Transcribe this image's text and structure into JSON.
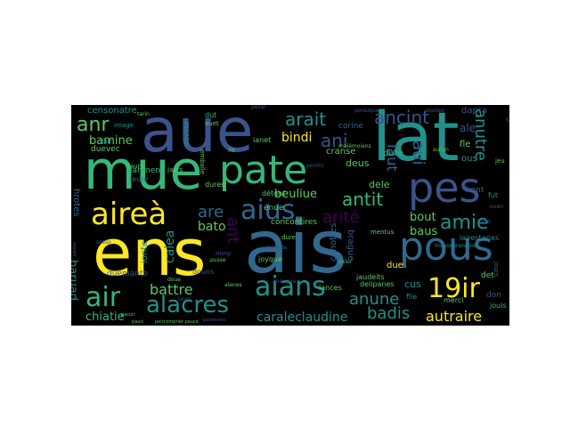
{
  "wordcloud": {
    "background": "#000000",
    "palette": [
      "#fde725",
      "#21918c",
      "#3b528b",
      "#440154",
      "#5ec962",
      "#31688e",
      "#35b779"
    ],
    "words": [
      {
        "text": "ais",
        "color": "#31688e"
      },
      {
        "text": "ens",
        "color": "#fde725"
      },
      {
        "text": "aue",
        "color": "#3b528b"
      },
      {
        "text": "lat",
        "color": "#21918c"
      },
      {
        "text": "mue",
        "color": "#35b779"
      },
      {
        "text": "pate",
        "color": "#35b779"
      },
      {
        "text": "pes",
        "color": "#3b528b"
      },
      {
        "text": "pous",
        "color": "#31688e"
      },
      {
        "text": "aireà",
        "color": "#fde725"
      },
      {
        "text": "aius",
        "color": "#31688e"
      },
      {
        "text": "aians",
        "color": "#21918c"
      },
      {
        "text": "air",
        "color": "#35b779"
      },
      {
        "text": "alacres",
        "color": "#21918c"
      },
      {
        "text": "19ir",
        "color": "#fde725"
      },
      {
        "text": "arait",
        "color": "#21918c"
      },
      {
        "text": "ancint",
        "color": "#3b528b"
      },
      {
        "text": "anr",
        "color": "#5ec962"
      },
      {
        "text": "ani",
        "color": "#3b528b"
      },
      {
        "text": "amie",
        "color": "#21918c"
      },
      {
        "text": "anutre",
        "color": "#21918c"
      },
      {
        "text": "antit",
        "color": "#35b779"
      },
      {
        "text": "arité",
        "color": "#440154"
      },
      {
        "text": "are",
        "color": "#31688e"
      },
      {
        "text": "ant",
        "color": "#440154"
      },
      {
        "text": "laut",
        "color": "#31688e"
      },
      {
        "text": "aui",
        "color": "#31688e"
      },
      {
        "text": "bamine",
        "color": "#5ec962"
      },
      {
        "text": "anune",
        "color": "#21918c"
      },
      {
        "text": "badis",
        "color": "#21918c"
      },
      {
        "text": "autraire",
        "color": "#fde725"
      },
      {
        "text": "battre",
        "color": "#5ec962"
      },
      {
        "text": "bato",
        "color": "#5ec962"
      },
      {
        "text": "baruad",
        "color": "#21918c"
      },
      {
        "text": "calea",
        "color": "#21918c"
      },
      {
        "text": "chiatie",
        "color": "#35b779"
      },
      {
        "text": "caraleclaudine",
        "color": "#21918c"
      },
      {
        "text": "bindi",
        "color": "#fde725"
      },
      {
        "text": "beuliue",
        "color": "#5ec962"
      },
      {
        "text": "bout",
        "color": "#5ec962"
      },
      {
        "text": "baus",
        "color": "#5ec962"
      },
      {
        "text": "censonatre",
        "color": "#21918c"
      },
      {
        "text": "duevec",
        "color": "#5ec962"
      },
      {
        "text": "ale",
        "color": "#3b528b"
      },
      {
        "text": "dapra",
        "color": "#3b528b"
      },
      {
        "text": "fle",
        "color": "#5ec962"
      },
      {
        "text": "ous",
        "color": "#21918c"
      },
      {
        "text": "cus",
        "color": "#21918c"
      },
      {
        "text": "due",
        "color": "#fde725"
      },
      {
        "text": "brague",
        "color": "#3b528b"
      },
      {
        "text": "canottes",
        "color": "#31688e"
      },
      {
        "text": "enue",
        "color": "#5ec962"
      },
      {
        "text": "dele",
        "color": "#5ec962"
      },
      {
        "text": "deus",
        "color": "#5ec962"
      },
      {
        "text": "dute",
        "color": "#35b779"
      },
      {
        "text": "cranse",
        "color": "#5ec962"
      },
      {
        "text": "corine",
        "color": "#31688e"
      },
      {
        "text": "concontires",
        "color": "#5ec962"
      },
      {
        "text": "ianet",
        "color": "#5ec962"
      },
      {
        "text": "dut",
        "color": "#35b779"
      },
      {
        "text": "hrotes",
        "color": "#31688e"
      },
      {
        "text": "ionte",
        "color": "#21918c"
      },
      {
        "text": "duemante",
        "color": "#3b528b"
      },
      {
        "text": "lairestaries",
        "color": "#21918c"
      },
      {
        "text": "front",
        "color": "#31688e"
      },
      {
        "text": "fut",
        "color": "#21918c"
      },
      {
        "text": "det",
        "color": "#5ec962"
      },
      {
        "text": "don",
        "color": "#3b528b"
      },
      {
        "text": "lances",
        "color": "#5ec962"
      },
      {
        "text": "delipanes",
        "color": "#5ec962"
      },
      {
        "text": "merci",
        "color": "#5ec962"
      },
      {
        "text": "jouis",
        "color": "#35b779"
      },
      {
        "text": "iarenent",
        "color": "#35b779"
      },
      {
        "text": "leure",
        "color": "#31688e"
      },
      {
        "text": "file",
        "color": "#21918c"
      },
      {
        "text": "jaudeits",
        "color": "#5ec962"
      },
      {
        "text": "joyque",
        "color": "#5ec962"
      },
      {
        "text": "dures",
        "color": "#5ec962"
      },
      {
        "text": "douns",
        "color": "#3b528b"
      },
      {
        "text": "dévote",
        "color": "#21918c"
      },
      {
        "text": "détont",
        "color": "#5ec962"
      },
      {
        "text": "emballe",
        "color": "#5ec962"
      },
      {
        "text": "euet",
        "color": "#5ec962"
      },
      {
        "text": "image",
        "color": "#21918c"
      },
      {
        "text": "louf",
        "color": "#21918c"
      },
      {
        "text": "ile",
        "color": "#5ec962"
      },
      {
        "text": "laure",
        "color": "#5ec962"
      },
      {
        "text": "jaurs",
        "color": "#5ec962"
      },
      {
        "text": "dure",
        "color": "#5ec962"
      },
      {
        "text": "pesar",
        "color": "#3b528b"
      },
      {
        "text": "nony",
        "color": "#3b528b"
      },
      {
        "text": "annuaire",
        "color": "#3b528b"
      },
      {
        "text": "laue",
        "color": "#3b528b"
      },
      {
        "text": "jours",
        "color": "#31688e"
      },
      {
        "text": "tan",
        "color": "#3b528b"
      },
      {
        "text": "jeu",
        "color": "#5ec962"
      },
      {
        "text": "mausourendois",
        "color": "#21918c"
      },
      {
        "text": "sesso",
        "color": "#3b528b"
      },
      {
        "text": "deler",
        "color": "#35b779"
      },
      {
        "text": "pentin",
        "color": "#3b528b"
      },
      {
        "text": "alenes",
        "color": "#5ec962"
      },
      {
        "text": "ponsique",
        "color": "#3b528b"
      },
      {
        "text": "soulies",
        "color": "#3b528b"
      },
      {
        "text": "ouen",
        "color": "#3b528b"
      },
      {
        "text": "pauci",
        "color": "#5ec962"
      },
      {
        "text": "tarin",
        "color": "#5ec962"
      },
      {
        "text": "doue",
        "color": "#5ec962"
      },
      {
        "text": "pusse",
        "color": "#5ec962"
      },
      {
        "text": "malémoiens",
        "color": "#5ec962"
      },
      {
        "text": "paisse",
        "color": "#3b528b"
      },
      {
        "text": "laurs",
        "color": "#3b528b"
      },
      {
        "text": "serenite",
        "color": "#3b528b"
      },
      {
        "text": "lion",
        "color": "#3b528b"
      },
      {
        "text": "mentus",
        "color": "#5ec962"
      },
      {
        "text": "sucun",
        "color": "#5ec962"
      },
      {
        "text": "pairessies",
        "color": "#3b528b"
      },
      {
        "text": "peircomprier pauce",
        "color": "#5ec962"
      },
      {
        "text": "pacuri",
        "color": "#5ec962"
      }
    ]
  }
}
